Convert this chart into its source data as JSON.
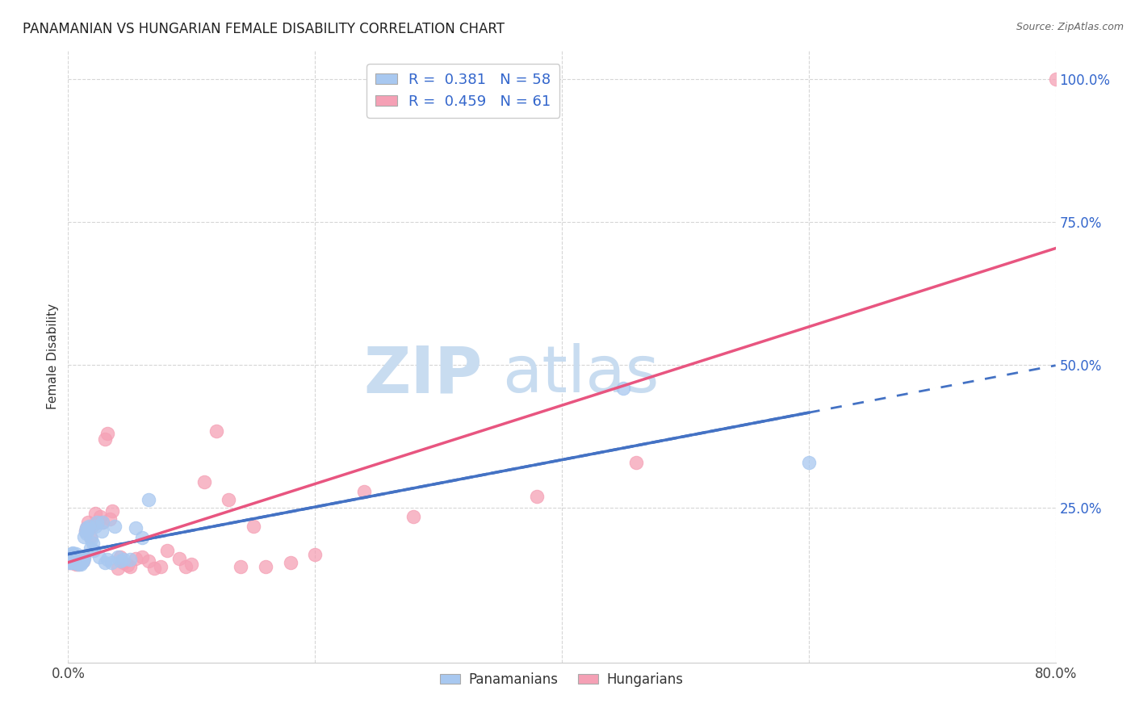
{
  "title": "PANAMANIAN VS HUNGARIAN FEMALE DISABILITY CORRELATION CHART",
  "source": "Source: ZipAtlas.com",
  "xlabel_label": "Panamanians",
  "xlabel_label2": "Hungarians",
  "ylabel": "Female Disability",
  "xlim": [
    0.0,
    0.8
  ],
  "ylim": [
    -0.02,
    1.05
  ],
  "ytick_positions": [
    0.25,
    0.5,
    0.75,
    1.0
  ],
  "ytick_labels": [
    "25.0%",
    "50.0%",
    "75.0%",
    "100.0%"
  ],
  "legend_v1": "0.381",
  "legend_nv1": "58",
  "legend_v2": "0.459",
  "legend_nv2": "61",
  "color_pan": "#A8C8F0",
  "color_hun": "#F5A0B5",
  "trendline_pan_color": "#4472C4",
  "trendline_hun_color": "#E85580",
  "pan_x": [
    0.001,
    0.002,
    0.002,
    0.003,
    0.003,
    0.003,
    0.004,
    0.004,
    0.004,
    0.005,
    0.005,
    0.005,
    0.006,
    0.006,
    0.006,
    0.007,
    0.007,
    0.007,
    0.008,
    0.008,
    0.008,
    0.009,
    0.009,
    0.01,
    0.01,
    0.011,
    0.011,
    0.012,
    0.012,
    0.013,
    0.013,
    0.014,
    0.015,
    0.015,
    0.016,
    0.017,
    0.018,
    0.019,
    0.02,
    0.021,
    0.022,
    0.023,
    0.025,
    0.027,
    0.028,
    0.03,
    0.032,
    0.035,
    0.038,
    0.04,
    0.042,
    0.045,
    0.05,
    0.055,
    0.06,
    0.065,
    0.45,
    0.6
  ],
  "pan_y": [
    0.155,
    0.16,
    0.165,
    0.155,
    0.162,
    0.17,
    0.158,
    0.165,
    0.172,
    0.155,
    0.16,
    0.168,
    0.155,
    0.162,
    0.17,
    0.155,
    0.158,
    0.165,
    0.152,
    0.158,
    0.165,
    0.155,
    0.162,
    0.152,
    0.16,
    0.155,
    0.162,
    0.158,
    0.165,
    0.162,
    0.2,
    0.21,
    0.205,
    0.215,
    0.212,
    0.218,
    0.18,
    0.195,
    0.188,
    0.175,
    0.218,
    0.225,
    0.165,
    0.21,
    0.225,
    0.155,
    0.16,
    0.155,
    0.218,
    0.165,
    0.158,
    0.16,
    0.16,
    0.215,
    0.198,
    0.265,
    0.46,
    0.33
  ],
  "hun_x": [
    0.001,
    0.002,
    0.002,
    0.003,
    0.003,
    0.004,
    0.004,
    0.005,
    0.005,
    0.006,
    0.006,
    0.007,
    0.008,
    0.008,
    0.009,
    0.01,
    0.01,
    0.011,
    0.012,
    0.013,
    0.014,
    0.015,
    0.016,
    0.017,
    0.018,
    0.02,
    0.022,
    0.024,
    0.026,
    0.028,
    0.03,
    0.032,
    0.034,
    0.036,
    0.04,
    0.042,
    0.045,
    0.048,
    0.05,
    0.055,
    0.06,
    0.065,
    0.07,
    0.075,
    0.08,
    0.09,
    0.095,
    0.1,
    0.11,
    0.12,
    0.13,
    0.14,
    0.15,
    0.16,
    0.18,
    0.2,
    0.24,
    0.28,
    0.38,
    0.46,
    0.8
  ],
  "hun_y": [
    0.155,
    0.158,
    0.165,
    0.155,
    0.162,
    0.155,
    0.162,
    0.158,
    0.165,
    0.152,
    0.16,
    0.158,
    0.152,
    0.16,
    0.155,
    0.158,
    0.165,
    0.162,
    0.158,
    0.165,
    0.21,
    0.215,
    0.225,
    0.215,
    0.2,
    0.22,
    0.24,
    0.225,
    0.235,
    0.225,
    0.37,
    0.38,
    0.23,
    0.245,
    0.145,
    0.165,
    0.155,
    0.15,
    0.148,
    0.162,
    0.165,
    0.158,
    0.145,
    0.148,
    0.175,
    0.162,
    0.148,
    0.152,
    0.295,
    0.385,
    0.265,
    0.148,
    0.218,
    0.148,
    0.155,
    0.168,
    0.278,
    0.235,
    0.27,
    0.33,
    1.0
  ]
}
